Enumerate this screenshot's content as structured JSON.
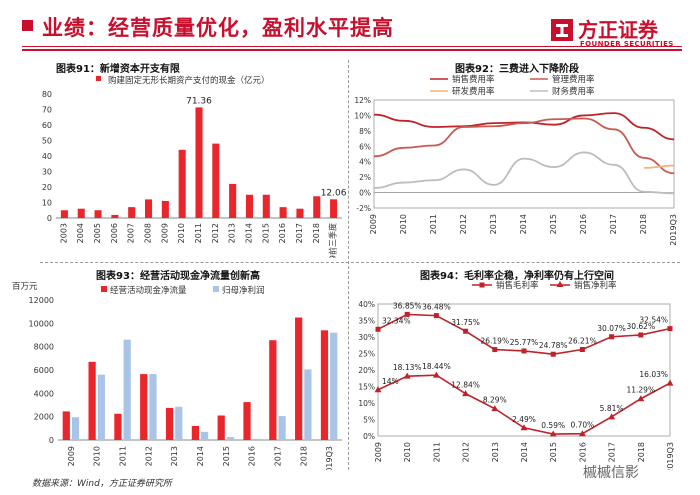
{
  "header": {
    "title": "业绩：经营质量优化，盈利水平提高",
    "logo_cn": "方正证券",
    "logo_en": "FOUNDER SECURITIES",
    "accent": "#c8102e"
  },
  "footer": {
    "source": "数据来源：Wind，方正证券研究所"
  },
  "watermark": {
    "text": "槭槭信影"
  },
  "charts": {
    "c91": {
      "title": "图表91：新增资本开支有限",
      "legend": "购建固定无形长期资产支付的现金（亿元）",
      "peak_label": "71.36",
      "last_label": "12.06"
    },
    "c92": {
      "title": "图表92：三费进入下降阶段",
      "legend": [
        "销售费用率",
        "管理费用率",
        "研发费用率",
        "财务费用率"
      ]
    },
    "c93": {
      "title": "图表93：经营活动现金净流量创新高",
      "unit": "百万元",
      "legend": [
        "经营活动现金净流量",
        "归母净利润"
      ]
    },
    "c94": {
      "title": "图表94：毛利率企稳，净利率仍有上行空间",
      "legend": [
        "销售毛利率",
        "销售净利率"
      ]
    }
  },
  "chart_data": [
    {
      "type": "bar",
      "id": "c91",
      "title": "图表91：新增资本开支有限",
      "categories": [
        "2003",
        "2004",
        "2005",
        "2006",
        "2007",
        "2008",
        "2009",
        "2010",
        "2011",
        "2012",
        "2013",
        "2014",
        "2015",
        "2016",
        "2017",
        "2018",
        "2019前三季度"
      ],
      "series": [
        {
          "name": "购建固定无形长期资产支付的现金（亿元）",
          "color": "#e8262b",
          "values": [
            5,
            6,
            5,
            2,
            7,
            12,
            11,
            44,
            71.36,
            48,
            22,
            15,
            15,
            7,
            6,
            14,
            12.06
          ]
        }
      ],
      "ylim": [
        0,
        80
      ],
      "yticks": [
        0,
        10,
        20,
        30,
        40,
        50,
        60,
        70,
        80
      ],
      "data_labels": {
        "8": "71.36",
        "16": "12.06"
      }
    },
    {
      "type": "line",
      "id": "c92",
      "title": "图表92：三费进入下降阶段",
      "categories": [
        "2009",
        "2010",
        "2011",
        "2012",
        "2013",
        "2014",
        "2015",
        "2016",
        "2017",
        "2018",
        "2019Q3"
      ],
      "series": [
        {
          "name": "销售费用率",
          "color": "#c0222a",
          "values": [
            10.1,
            9.3,
            8.5,
            8.6,
            9.0,
            9.1,
            8.8,
            10.0,
            10.3,
            8.4,
            6.9
          ]
        },
        {
          "name": "管理费用率",
          "color": "#c95a52",
          "values": [
            4.7,
            5.8,
            6.1,
            8.5,
            8.6,
            9.0,
            9.5,
            9.6,
            8.2,
            4.5,
            2.5
          ]
        },
        {
          "name": "研发费用率",
          "color": "#f2b27a",
          "values": [
            null,
            null,
            null,
            null,
            null,
            null,
            null,
            null,
            null,
            3.2,
            3.5
          ]
        },
        {
          "name": "财务费用率",
          "color": "#bdbdbd",
          "values": [
            0.6,
            1.3,
            1.6,
            3.0,
            1.0,
            4.4,
            3.3,
            5.2,
            3.6,
            0.1,
            -0.1
          ]
        }
      ],
      "ylim": [
        -2,
        12
      ],
      "yticks": [
        -2,
        0,
        2,
        4,
        6,
        8,
        10,
        12
      ],
      "ytick_labels": [
        "-2%",
        "0%",
        "2%",
        "4%",
        "6%",
        "8%",
        "10%",
        "12%"
      ]
    },
    {
      "type": "bar",
      "id": "c93",
      "title": "图表93：经营活动现金净流量创新高",
      "unit": "百万元",
      "categories": [
        "2009",
        "2010",
        "2011",
        "2012",
        "2013",
        "2014",
        "2015",
        "2016",
        "2017",
        "2018",
        "2019Q3"
      ],
      "series": [
        {
          "name": "经营活动现金净流量",
          "color": "#e8262b",
          "values": [
            2450,
            6700,
            2250,
            5650,
            2750,
            1200,
            2100,
            3250,
            8550,
            10500,
            9400
          ]
        },
        {
          "name": "归母净利润",
          "color": "#a9c4e6",
          "values": [
            1950,
            5600,
            8600,
            5650,
            2850,
            700,
            250,
            100,
            2050,
            6050,
            9200
          ]
        }
      ],
      "ylim": [
        0,
        12000
      ],
      "yticks": [
        0,
        2000,
        4000,
        6000,
        8000,
        10000,
        12000
      ]
    },
    {
      "type": "line",
      "id": "c94",
      "title": "图表94：毛利率企稳，净利率仍有上行空间",
      "categories": [
        "2009",
        "2010",
        "2011",
        "2012",
        "2013",
        "2014",
        "2015",
        "2016",
        "2017",
        "2018",
        "2019Q3"
      ],
      "series": [
        {
          "name": "销售毛利率",
          "color": "#c0222a",
          "marker": "square",
          "values": [
            32.34,
            36.85,
            36.48,
            31.75,
            26.19,
            25.77,
            24.78,
            26.21,
            30.07,
            30.62,
            32.54
          ],
          "labels": [
            "32.34%",
            "36.85%",
            "36.48%",
            "31.75%",
            "26.19%",
            "25.77%",
            "24.78%",
            "26.21%",
            "30.07%",
            "30.62%",
            "32.54%"
          ]
        },
        {
          "name": "销售净利率",
          "color": "#c0222a",
          "marker": "triangle",
          "values": [
            14,
            18.13,
            18.44,
            12.84,
            8.29,
            2.49,
            0.59,
            0.7,
            5.81,
            11.29,
            16.03
          ],
          "labels": [
            "14%",
            "18.13%",
            "18.44%",
            "12.84%",
            "8.29%",
            "2.49%",
            "0.59%",
            "0.70%",
            "5.81%",
            "11.29%",
            "16.03%"
          ]
        }
      ],
      "ylim": [
        0,
        40
      ],
      "yticks": [
        0,
        5,
        10,
        15,
        20,
        25,
        30,
        35,
        40
      ],
      "ytick_labels": [
        "0%",
        "5%",
        "10%",
        "15%",
        "20%",
        "25%",
        "30%",
        "35%",
        "40%"
      ]
    }
  ]
}
